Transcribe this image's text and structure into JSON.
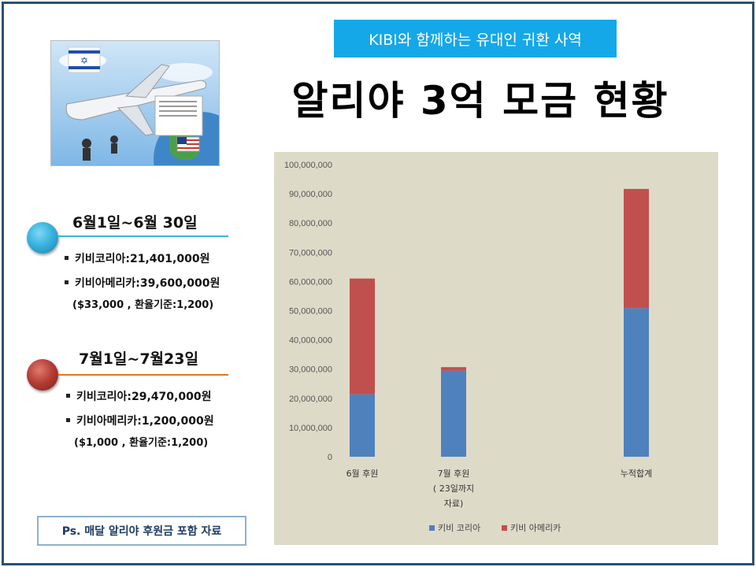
{
  "banner": "KIBI와 함께하는 유대인 귀환 사역",
  "title": "알리야 3억 모금 현황",
  "photo": {
    "alt": "airplane-israel-flag-illustration"
  },
  "periods": [
    {
      "heading": "6월1일~6월 30일",
      "items": [
        "키비코리아:21,401,000원",
        "키비아메리카:39,600,000원"
      ],
      "note": "($33,000 , 환율기준:1,200)",
      "color": "#39b3df"
    },
    {
      "heading": "7월1일~7월23일",
      "items": [
        "키비코리아:29,470,000원",
        "키비아메리카:1,200,000원"
      ],
      "note": "($1,000 , 환율기준:1,200)",
      "color": "#b23a32"
    }
  ],
  "ps_note": "Ps. 매달 알리야 후원금 포함 자료",
  "chart_data": {
    "type": "bar",
    "stacked": true,
    "categories": [
      "6월 후원",
      "7월 후원\n( 23일까지\n자료)",
      "",
      "누적합계"
    ],
    "series": [
      {
        "name": "키비 코리아",
        "color": "#4f81bd",
        "values": [
          21401000,
          29470000,
          0,
          50871000
        ]
      },
      {
        "name": "키비 아메리카",
        "color": "#c0504d",
        "values": [
          39600000,
          1200000,
          0,
          40800000
        ]
      }
    ],
    "ylim": [
      0,
      100000000
    ],
    "yticks": [
      "0",
      "10,000,000",
      "20,000,000",
      "30,000,000",
      "40,000,000",
      "50,000,000",
      "60,000,000",
      "70,000,000",
      "80,000,000",
      "90,000,000",
      "100,000,000"
    ],
    "legend": "bottom",
    "grid": false
  }
}
